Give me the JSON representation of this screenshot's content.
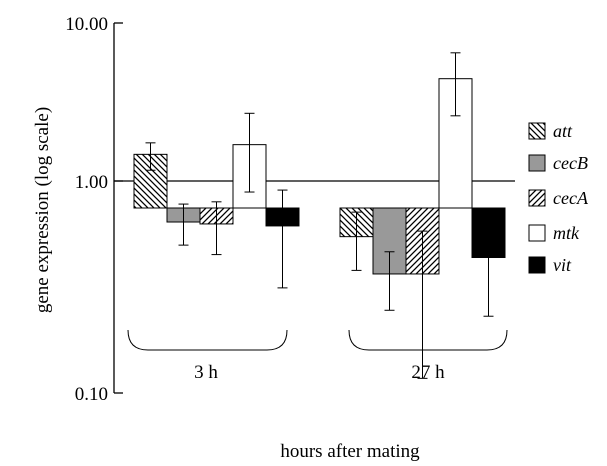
{
  "chart_data": {
    "type": "bar",
    "ylabel": "gene expression (log scale)",
    "xlabel": "hours after mating",
    "y_scale": "log",
    "ylim": [
      0.1,
      10
    ],
    "baseline": 1.0,
    "y_ticks": [
      "10.00",
      "1.00",
      "0.10"
    ],
    "y_tick_values": [
      10,
      1,
      0.1
    ],
    "categories": [
      "3 h",
      "27 h"
    ],
    "series": [
      {
        "name": "att",
        "values": [
          1.95,
          0.7
        ],
        "err_low": [
          1.6,
          0.46
        ],
        "err_high": [
          2.25,
          0.95
        ],
        "fill": "hatch-back"
      },
      {
        "name": "cecB",
        "values": [
          0.84,
          0.44
        ],
        "err_low": [
          0.63,
          0.28
        ],
        "err_high": [
          1.05,
          0.58
        ],
        "fill": "#999999"
      },
      {
        "name": "cecA",
        "values": [
          0.82,
          0.44
        ],
        "err_low": [
          0.56,
          0.12
        ],
        "err_high": [
          1.08,
          0.75
        ],
        "fill": "hatch-fwd"
      },
      {
        "name": "mtk",
        "values": [
          2.2,
          5.0
        ],
        "err_low": [
          1.22,
          3.15
        ],
        "err_high": [
          3.25,
          6.9
        ],
        "fill": "#ffffff"
      },
      {
        "name": "vit",
        "values": [
          0.8,
          0.54
        ],
        "err_low": [
          0.37,
          0.26
        ],
        "err_high": [
          1.25,
          1.0
        ],
        "fill": "#000000"
      }
    ],
    "legend_position": "right",
    "grid": false
  }
}
